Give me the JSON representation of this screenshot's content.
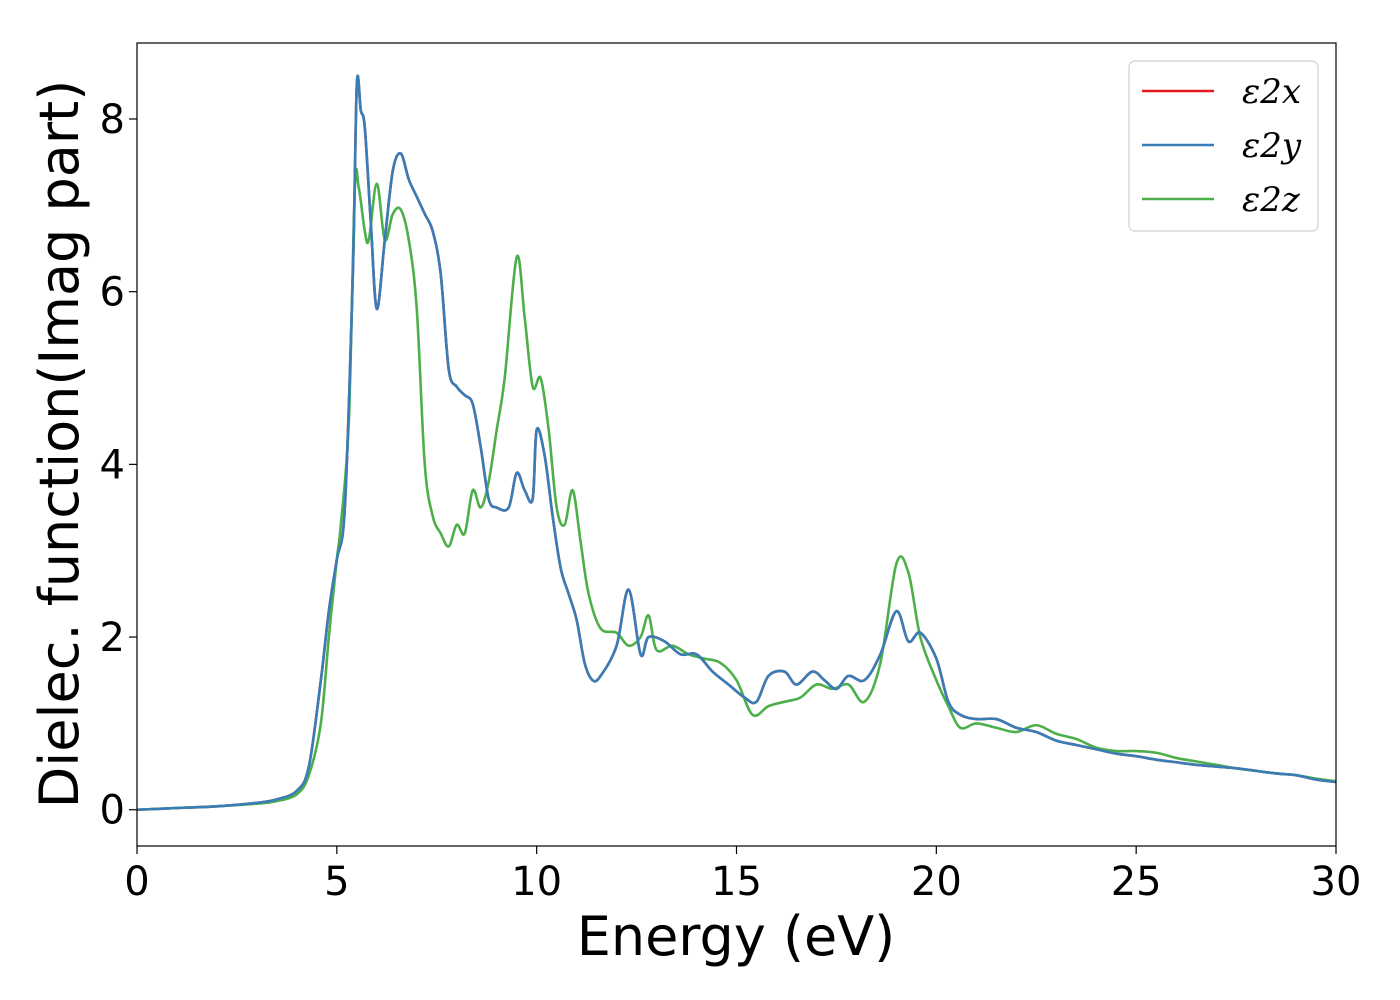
{
  "chart_data": {
    "type": "line",
    "title": "",
    "xlabel": "Energy (eV)",
    "ylabel": "Dielec. function(Imag part)",
    "xlim": [
      0,
      30
    ],
    "ylim": [
      -0.42,
      8.88
    ],
    "xticks": [
      0,
      5,
      10,
      15,
      20,
      25,
      30
    ],
    "yticks": [
      0,
      2,
      4,
      6,
      8
    ],
    "grid": false,
    "legend_position": "top-right",
    "series": [
      {
        "name": "ε2x",
        "color": "#e41a1c",
        "x": [
          0,
          1,
          2,
          3,
          3.5,
          4,
          4.3,
          4.6,
          4.8,
          5,
          5.2,
          5.4,
          5.5,
          5.6,
          5.7,
          5.85,
          6,
          6.2,
          6.4,
          6.6,
          6.8,
          7,
          7.2,
          7.4,
          7.6,
          7.8,
          8,
          8.2,
          8.4,
          8.6,
          8.8,
          9,
          9.3,
          9.5,
          9.7,
          9.9,
          10,
          10.2,
          10.4,
          10.6,
          10.8,
          11,
          11.2,
          11.4,
          11.6,
          12,
          12.3,
          12.6,
          12.8,
          13.2,
          13.6,
          14,
          14.4,
          14.8,
          15.2,
          15.5,
          15.8,
          16.2,
          16.5,
          16.9,
          17.2,
          17.5,
          17.8,
          18.2,
          18.6,
          19,
          19.3,
          19.6,
          20,
          20.3,
          20.6,
          21,
          21.5,
          22,
          22.5,
          23,
          23.5,
          24,
          24.5,
          25,
          25.5,
          26,
          26.5,
          27,
          27.5,
          28,
          28.5,
          29,
          29.5,
          30
        ],
        "values": [
          0,
          0.02,
          0.04,
          0.08,
          0.12,
          0.22,
          0.5,
          1.5,
          2.3,
          2.9,
          3.5,
          6.2,
          8.4,
          8.1,
          7.9,
          6.8,
          5.8,
          6.6,
          7.4,
          7.6,
          7.3,
          7.1,
          6.9,
          6.7,
          6.2,
          5.1,
          4.9,
          4.8,
          4.7,
          4.2,
          3.6,
          3.5,
          3.5,
          3.9,
          3.7,
          3.6,
          4.4,
          4.1,
          3.4,
          2.8,
          2.5,
          2.2,
          1.7,
          1.5,
          1.55,
          1.9,
          2.55,
          1.8,
          2.0,
          1.95,
          1.8,
          1.8,
          1.6,
          1.45,
          1.3,
          1.25,
          1.55,
          1.6,
          1.45,
          1.6,
          1.5,
          1.4,
          1.55,
          1.5,
          1.8,
          2.3,
          1.95,
          2.05,
          1.75,
          1.25,
          1.1,
          1.05,
          1.05,
          0.95,
          0.9,
          0.8,
          0.75,
          0.7,
          0.65,
          0.62,
          0.58,
          0.55,
          0.52,
          0.5,
          0.48,
          0.45,
          0.42,
          0.4,
          0.35,
          0.32
        ]
      },
      {
        "name": "ε2y",
        "color": "#377eb8",
        "x": [
          0,
          1,
          2,
          3,
          3.5,
          4,
          4.3,
          4.6,
          4.8,
          5,
          5.2,
          5.4,
          5.5,
          5.6,
          5.7,
          5.85,
          6,
          6.2,
          6.4,
          6.6,
          6.8,
          7,
          7.2,
          7.4,
          7.6,
          7.8,
          8,
          8.2,
          8.4,
          8.6,
          8.8,
          9,
          9.3,
          9.5,
          9.7,
          9.9,
          10,
          10.2,
          10.4,
          10.6,
          10.8,
          11,
          11.2,
          11.4,
          11.6,
          12,
          12.3,
          12.6,
          12.8,
          13.2,
          13.6,
          14,
          14.4,
          14.8,
          15.2,
          15.5,
          15.8,
          16.2,
          16.5,
          16.9,
          17.2,
          17.5,
          17.8,
          18.2,
          18.6,
          19,
          19.3,
          19.6,
          20,
          20.3,
          20.6,
          21,
          21.5,
          22,
          22.5,
          23,
          23.5,
          24,
          24.5,
          25,
          25.5,
          26,
          26.5,
          27,
          27.5,
          28,
          28.5,
          29,
          29.5,
          30
        ],
        "values": [
          0,
          0.02,
          0.04,
          0.08,
          0.12,
          0.22,
          0.5,
          1.5,
          2.3,
          2.9,
          3.5,
          6.2,
          8.4,
          8.1,
          7.9,
          6.8,
          5.8,
          6.6,
          7.4,
          7.6,
          7.3,
          7.1,
          6.9,
          6.7,
          6.2,
          5.1,
          4.9,
          4.8,
          4.7,
          4.2,
          3.6,
          3.5,
          3.5,
          3.9,
          3.7,
          3.6,
          4.4,
          4.1,
          3.4,
          2.8,
          2.5,
          2.2,
          1.7,
          1.5,
          1.55,
          1.9,
          2.55,
          1.8,
          2.0,
          1.95,
          1.8,
          1.8,
          1.6,
          1.45,
          1.3,
          1.25,
          1.55,
          1.6,
          1.45,
          1.6,
          1.5,
          1.4,
          1.55,
          1.5,
          1.8,
          2.3,
          1.95,
          2.05,
          1.75,
          1.25,
          1.1,
          1.05,
          1.05,
          0.95,
          0.9,
          0.8,
          0.75,
          0.7,
          0.65,
          0.62,
          0.58,
          0.55,
          0.52,
          0.5,
          0.48,
          0.45,
          0.42,
          0.4,
          0.35,
          0.32
        ]
      },
      {
        "name": "ε2z",
        "color": "#4daf4a",
        "x": [
          0,
          1,
          2,
          3,
          3.5,
          4,
          4.3,
          4.6,
          4.8,
          5,
          5.1,
          5.3,
          5.45,
          5.55,
          5.7,
          5.8,
          6.0,
          6.2,
          6.4,
          6.6,
          6.8,
          7.0,
          7.2,
          7.4,
          7.6,
          7.8,
          8.0,
          8.2,
          8.4,
          8.6,
          8.8,
          9,
          9.2,
          9.5,
          9.7,
          9.9,
          10.1,
          10.3,
          10.5,
          10.7,
          10.9,
          11.1,
          11.3,
          11.6,
          12,
          12.3,
          12.6,
          12.8,
          13,
          13.4,
          13.8,
          14.2,
          14.6,
          15,
          15.4,
          15.8,
          16.2,
          16.6,
          17,
          17.4,
          17.8,
          18.2,
          18.6,
          19,
          19.3,
          19.6,
          20,
          20.3,
          20.6,
          21,
          21.5,
          22,
          22.5,
          23,
          23.5,
          24,
          24.5,
          25,
          25.5,
          26,
          26.5,
          27,
          27.5,
          28,
          28.5,
          29,
          29.5,
          30
        ],
        "values": [
          0,
          0.02,
          0.04,
          0.07,
          0.1,
          0.18,
          0.4,
          1.0,
          2.0,
          2.9,
          3.3,
          4.5,
          7.2,
          7.2,
          6.7,
          6.6,
          7.25,
          6.6,
          6.9,
          6.95,
          6.6,
          5.8,
          4.0,
          3.4,
          3.2,
          3.05,
          3.3,
          3.2,
          3.7,
          3.5,
          3.8,
          4.4,
          5.0,
          6.4,
          5.7,
          4.9,
          5.0,
          4.4,
          3.5,
          3.3,
          3.7,
          3.1,
          2.5,
          2.1,
          2.05,
          1.9,
          2.0,
          2.25,
          1.85,
          1.9,
          1.8,
          1.75,
          1.7,
          1.5,
          1.1,
          1.2,
          1.25,
          1.3,
          1.45,
          1.4,
          1.45,
          1.25,
          1.7,
          2.85,
          2.75,
          2.0,
          1.5,
          1.2,
          0.95,
          1.0,
          0.95,
          0.9,
          0.98,
          0.88,
          0.82,
          0.72,
          0.68,
          0.68,
          0.66,
          0.6,
          0.56,
          0.52,
          0.48,
          0.45,
          0.42,
          0.4,
          0.36,
          0.33
        ]
      }
    ]
  }
}
